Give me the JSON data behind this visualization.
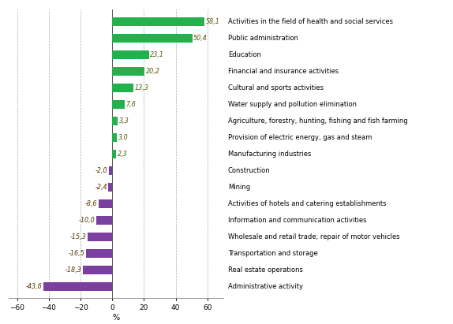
{
  "categories": [
    "Activities in the field of health and social services",
    "Public administration",
    "Education",
    "Financial and insurance activities",
    "Cultural and sports activities",
    "Water supply and pollution elimination",
    "Agriculture, forestry, hunting, fishing and fish farming",
    "Provision of electric energy, gas and steam",
    "Manufacturing industries",
    "Construction",
    "Mining",
    "Activities of hotels and catering establishments",
    "Information and communication activities",
    "Wholesale and retail trade; repair of motor vehicles",
    "Transportation and storage",
    "Real estate operations",
    "Administrative activity"
  ],
  "values": [
    58.1,
    50.4,
    23.1,
    20.2,
    13.3,
    7.6,
    3.3,
    3.0,
    2.3,
    -2.0,
    -2.4,
    -8.6,
    -10.0,
    -15.3,
    -16.5,
    -18.3,
    -43.6
  ],
  "bar_colors": [
    "#22b14c",
    "#22b14c",
    "#22b14c",
    "#22b14c",
    "#22b14c",
    "#22b14c",
    "#22b14c",
    "#22b14c",
    "#22b14c",
    "#7b3fa0",
    "#7b3fa0",
    "#7b3fa0",
    "#7b3fa0",
    "#7b3fa0",
    "#7b3fa0",
    "#7b3fa0",
    "#7b3fa0"
  ],
  "xlim": [
    -65,
    70
  ],
  "xticks": [
    -60,
    -40,
    -20,
    0,
    20,
    40,
    60
  ],
  "xlabel": "%",
  "background_color": "#ffffff",
  "grid_color": "#aaaaaa",
  "label_fontsize": 6.0,
  "value_fontsize": 5.8,
  "bar_height": 0.52,
  "value_color_pos": "#7f7f00",
  "value_color_neg": "#7f3f00"
}
